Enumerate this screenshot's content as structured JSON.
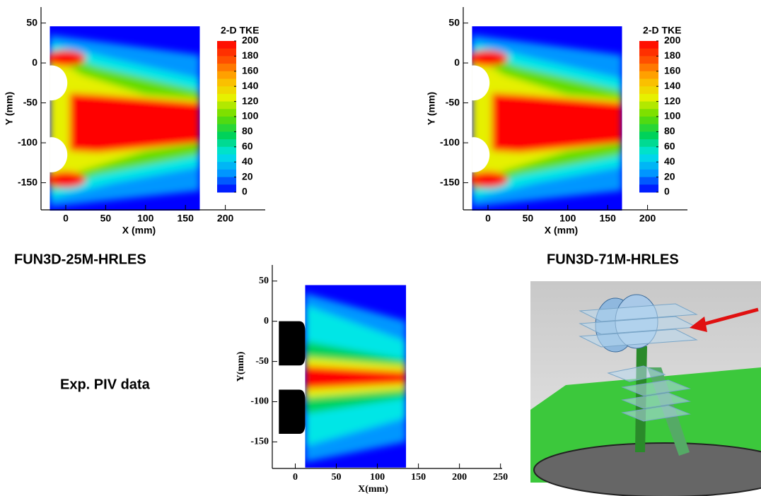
{
  "chart_data": [
    {
      "type": "contour",
      "colorbar_title": "2-D TKE",
      "clim": [
        0,
        200
      ],
      "colorbar_ticks": [
        0,
        20,
        40,
        60,
        80,
        100,
        120,
        140,
        160,
        180,
        200
      ],
      "colormap": [
        "#0000ff",
        "#0096ff",
        "#00e6e6",
        "#00d25a",
        "#64dc00",
        "#e6f000",
        "#ffb400",
        "#ff5000",
        "#ff0000"
      ],
      "x_label": "X (mm)",
      "y_label": "Y (mm)",
      "xlim": [
        -31,
        250
      ],
      "ylim": [
        -184,
        70
      ],
      "xticks": [
        0,
        50,
        100,
        150,
        200
      ],
      "yticks": [
        -150,
        -100,
        -50,
        0,
        50
      ],
      "caption": "FUN3D-25M-HRLES"
    },
    {
      "type": "contour",
      "colorbar_title": "2-D TKE",
      "clim": [
        0,
        200
      ],
      "colorbar_ticks": [
        0,
        20,
        40,
        60,
        80,
        100,
        120,
        140,
        160,
        180,
        200
      ],
      "colormap": [
        "#0000ff",
        "#0096ff",
        "#00e6e6",
        "#00d25a",
        "#64dc00",
        "#e6f000",
        "#ffb400",
        "#ff5000",
        "#ff0000"
      ],
      "x_label": "X (mm)",
      "y_label": "Y (mm)",
      "xlim": [
        -31,
        250
      ],
      "ylim": [
        -184,
        70
      ],
      "xticks": [
        0,
        50,
        100,
        150,
        200
      ],
      "yticks": [
        -150,
        -100,
        -50,
        0,
        50
      ],
      "caption": "FUN3D-71M-HRLES"
    },
    {
      "type": "contour-exp",
      "x_label": "X(mm)",
      "y_label": "Y(mm)",
      "xlim": [
        -28,
        252
      ],
      "ylim": [
        -183,
        70
      ],
      "xticks": [
        0,
        50,
        100,
        150,
        200,
        250
      ],
      "yticks": [
        -150,
        -100,
        -50,
        0,
        50
      ],
      "caption": "Exp. PIV data"
    }
  ]
}
